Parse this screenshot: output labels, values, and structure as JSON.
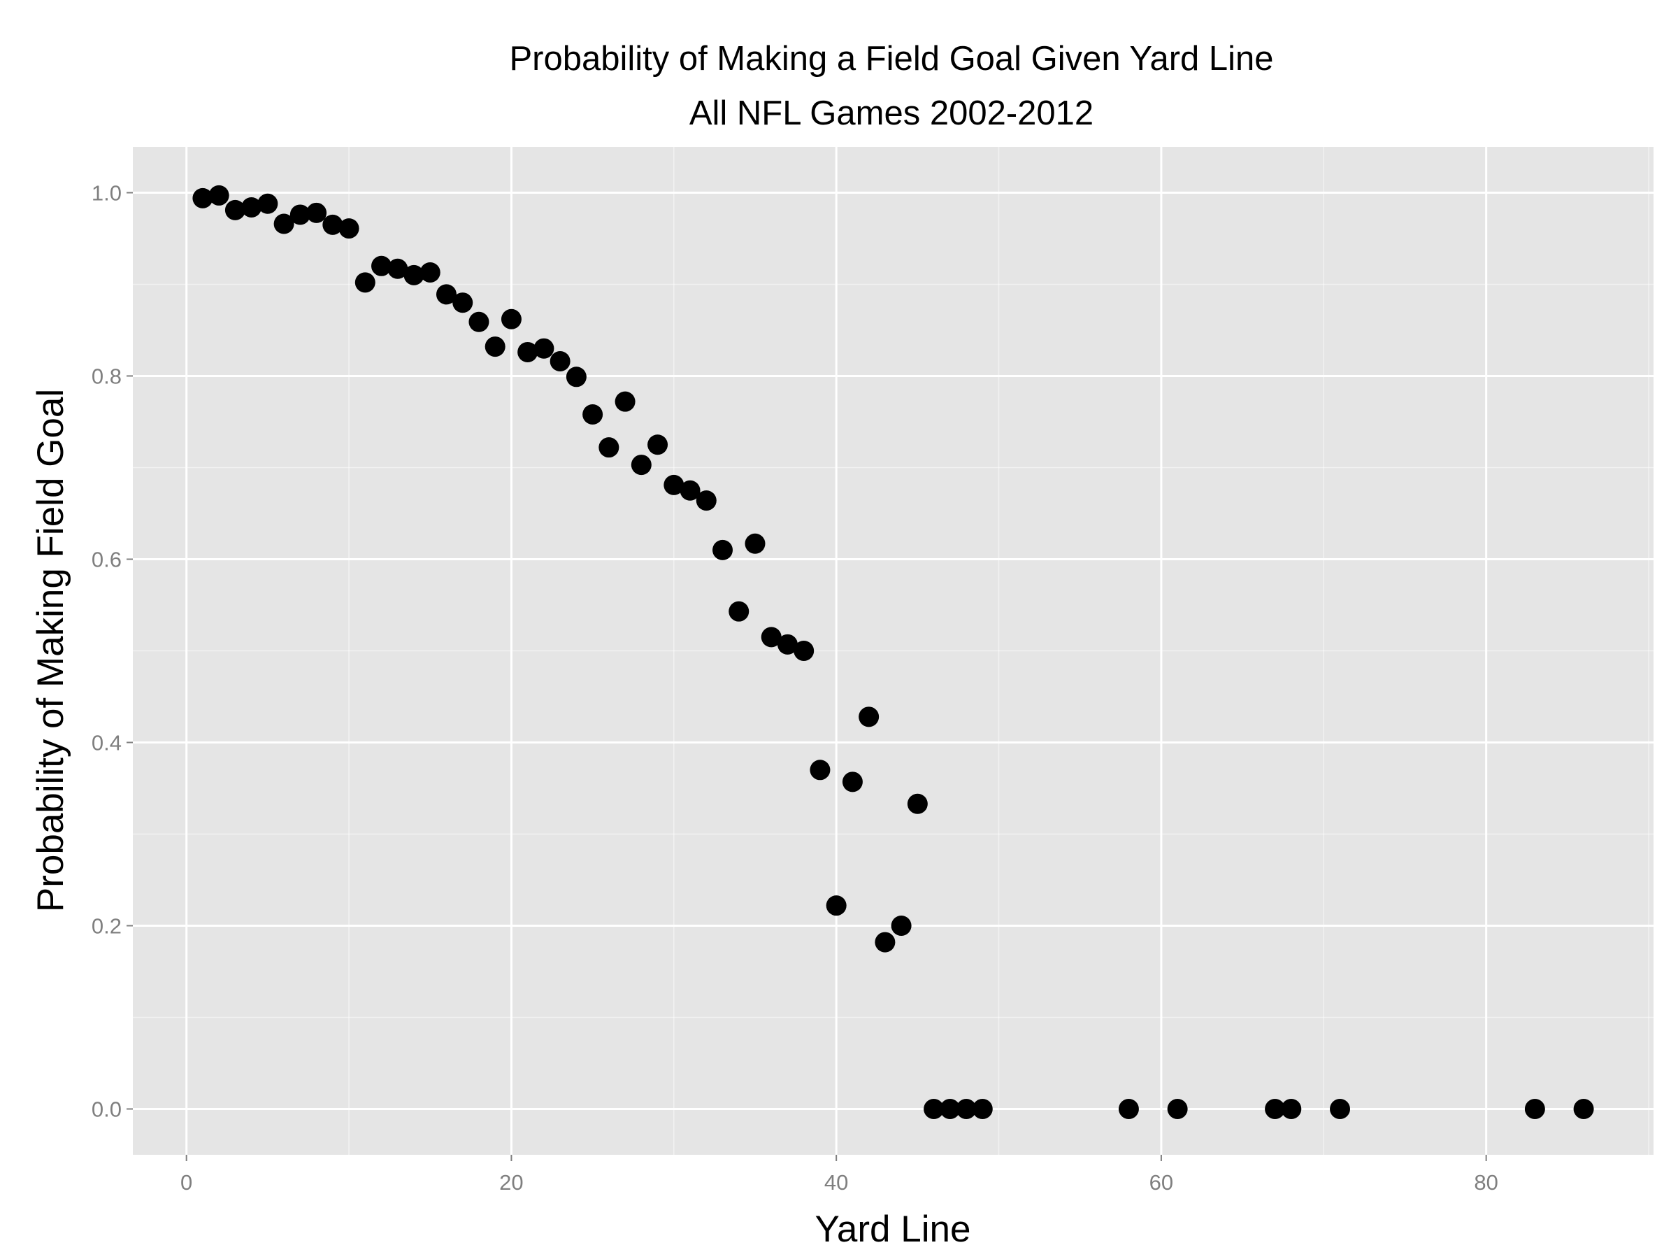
{
  "chart_data": {
    "type": "scatter",
    "title": "Probability of Making a Field Goal Given Yard Line",
    "subtitle": "All NFL Games 2002-2012",
    "xlabel": "Yard Line",
    "ylabel": "Probability of Making Field Goal",
    "xlim": [
      -3.3,
      90.3
    ],
    "ylim": [
      -0.05,
      1.05
    ],
    "x_ticks": [
      0,
      20,
      40,
      60,
      80
    ],
    "x_tick_labels": [
      "0",
      "20",
      "40",
      "60",
      "80"
    ],
    "y_ticks": [
      0.0,
      0.2,
      0.4,
      0.6,
      0.8,
      1.0
    ],
    "y_tick_labels": [
      "0.0",
      "0.2",
      "0.4",
      "0.6",
      "0.8",
      "1.0"
    ],
    "x_minor_ticks": [
      10,
      30,
      50,
      70,
      90
    ],
    "y_minor_ticks": [
      0.1,
      0.3,
      0.5,
      0.7,
      0.9
    ],
    "grid": true,
    "panel_color": "#e5e5e5",
    "grid_color": "#ffffff",
    "point_color": "#000000",
    "series": [
      {
        "points": [
          [
            1,
            0.994
          ],
          [
            2,
            0.997
          ],
          [
            3,
            0.981
          ],
          [
            4,
            0.984
          ],
          [
            5,
            0.988
          ],
          [
            6,
            0.966
          ],
          [
            7,
            0.976
          ],
          [
            8,
            0.978
          ],
          [
            9,
            0.965
          ],
          [
            10,
            0.961
          ],
          [
            11,
            0.902
          ],
          [
            12,
            0.92
          ],
          [
            13,
            0.917
          ],
          [
            14,
            0.91
          ],
          [
            15,
            0.913
          ],
          [
            16,
            0.889
          ],
          [
            17,
            0.88
          ],
          [
            18,
            0.859
          ],
          [
            19,
            0.832
          ],
          [
            20,
            0.862
          ],
          [
            21,
            0.826
          ],
          [
            22,
            0.83
          ],
          [
            23,
            0.816
          ],
          [
            24,
            0.799
          ],
          [
            25,
            0.758
          ],
          [
            26,
            0.722
          ],
          [
            27,
            0.772
          ],
          [
            28,
            0.703
          ],
          [
            29,
            0.725
          ],
          [
            30,
            0.681
          ],
          [
            31,
            0.675
          ],
          [
            32,
            0.664
          ],
          [
            33,
            0.61
          ],
          [
            34,
            0.543
          ],
          [
            35,
            0.617
          ],
          [
            36,
            0.515
          ],
          [
            37,
            0.507
          ],
          [
            38,
            0.5
          ],
          [
            39,
            0.37
          ],
          [
            40,
            0.222
          ],
          [
            41,
            0.357
          ],
          [
            42,
            0.428
          ],
          [
            43,
            0.182
          ],
          [
            44,
            0.2
          ],
          [
            45,
            0.333
          ],
          [
            46,
            0.0
          ],
          [
            47,
            0.0
          ],
          [
            48,
            0.0
          ],
          [
            49,
            0.0
          ],
          [
            58,
            0.0
          ],
          [
            61,
            0.0
          ],
          [
            67,
            0.0
          ],
          [
            68,
            0.0
          ],
          [
            71,
            0.0
          ],
          [
            83,
            0.0
          ],
          [
            86,
            0.0
          ]
        ]
      }
    ]
  }
}
